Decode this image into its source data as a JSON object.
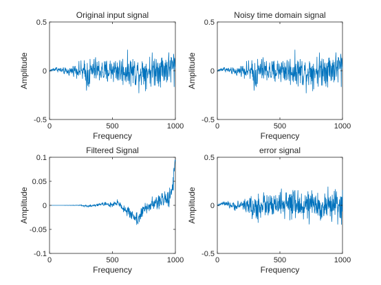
{
  "chart_data": [
    {
      "type": "line",
      "title": "Original input signal",
      "xlabel": "Frequency",
      "ylabel": "Amplitude",
      "xlim": [
        0,
        1000
      ],
      "ylim": [
        -0.5,
        0.5
      ],
      "x_ticks": [
        "0",
        "500",
        "1000"
      ],
      "y_ticks": [
        "0.5",
        "0",
        "-0.5"
      ],
      "color": "#0072BD",
      "grid": false,
      "signal_x": [
        0,
        50,
        100,
        150,
        200,
        250,
        300,
        350,
        400,
        450,
        500,
        550,
        600,
        650,
        700,
        750,
        800,
        850,
        900,
        950,
        1000
      ],
      "signal_envelope": [
        0.02,
        0.04,
        0.05,
        0.07,
        0.09,
        0.15,
        0.28,
        0.22,
        0.2,
        0.22,
        0.22,
        0.24,
        0.25,
        0.24,
        0.27,
        0.26,
        0.27,
        0.28,
        0.28,
        0.28,
        0.35
      ],
      "signal_offset": [
        0.0,
        0.02,
        0.0,
        -0.01,
        0.01,
        0.0,
        -0.05,
        0.01,
        0.0,
        -0.02,
        0.02,
        0.0,
        0.0,
        0.0,
        -0.02,
        0.0,
        0.0,
        0.02,
        0.02,
        0.03,
        0.04
      ]
    },
    {
      "type": "line",
      "title": "Noisy time domain signal",
      "xlabel": "Frequency",
      "ylabel": "Amplitude",
      "xlim": [
        0,
        1000
      ],
      "ylim": [
        -0.5,
        0.5
      ],
      "x_ticks": [
        "0",
        "500",
        "1000"
      ],
      "y_ticks": [
        "0.5",
        "0",
        "-0.5"
      ],
      "color": "#0072BD",
      "grid": false,
      "signal_x": [
        0,
        50,
        100,
        150,
        200,
        250,
        300,
        350,
        400,
        450,
        500,
        550,
        600,
        650,
        700,
        750,
        800,
        850,
        900,
        950,
        1000
      ],
      "signal_envelope": [
        0.02,
        0.04,
        0.05,
        0.07,
        0.09,
        0.15,
        0.28,
        0.22,
        0.2,
        0.22,
        0.22,
        0.24,
        0.25,
        0.24,
        0.27,
        0.26,
        0.27,
        0.28,
        0.28,
        0.28,
        0.35
      ],
      "signal_offset": [
        0.0,
        0.02,
        0.0,
        -0.01,
        0.01,
        0.0,
        -0.05,
        0.01,
        0.0,
        -0.02,
        0.02,
        0.0,
        0.0,
        0.0,
        -0.02,
        0.0,
        0.0,
        0.02,
        0.02,
        0.03,
        0.04
      ]
    },
    {
      "type": "line",
      "title": "Filtered Signal",
      "xlabel": "Frequency",
      "ylabel": "Amplitude",
      "xlim": [
        0,
        1000
      ],
      "ylim": [
        -0.1,
        0.1
      ],
      "x_ticks": [
        "0",
        "500",
        "1000"
      ],
      "y_ticks": [
        "0.1",
        "0.05",
        "0",
        "-0.05",
        "-0.1"
      ],
      "color": "#0072BD",
      "grid": false,
      "signal_x": [
        0,
        50,
        100,
        150,
        200,
        250,
        300,
        350,
        400,
        450,
        500,
        550,
        600,
        650,
        700,
        750,
        800,
        850,
        900,
        950,
        980,
        1000
      ],
      "signal_envelope": [
        0.0,
        0.0,
        0.0,
        0.0005,
        0.001,
        0.002,
        0.003,
        0.004,
        0.006,
        0.008,
        0.01,
        0.013,
        0.016,
        0.02,
        0.025,
        0.022,
        0.02,
        0.025,
        0.03,
        0.035,
        0.03,
        0.02
      ],
      "signal_offset": [
        0.0,
        0.0,
        0.0,
        0.0,
        0.0,
        0.0,
        -0.002,
        0.0,
        0.002,
        0.003,
        0.0,
        0.005,
        -0.01,
        -0.018,
        -0.03,
        -0.01,
        0.0,
        0.005,
        0.01,
        0.018,
        0.04,
        0.1
      ]
    },
    {
      "type": "line",
      "title": "error signal",
      "xlabel": "Frequency",
      "ylabel": "Amplitude",
      "xlim": [
        0,
        1000
      ],
      "ylim": [
        -0.5,
        0.5
      ],
      "x_ticks": [
        "0",
        "500",
        "1000"
      ],
      "y_ticks": [
        "0.5",
        "0",
        "-0.5"
      ],
      "color": "#0072BD",
      "grid": false,
      "signal_x": [
        0,
        50,
        100,
        150,
        200,
        250,
        300,
        350,
        400,
        450,
        500,
        550,
        600,
        650,
        700,
        750,
        800,
        850,
        900,
        950,
        1000
      ],
      "signal_envelope": [
        0.02,
        0.04,
        0.05,
        0.07,
        0.09,
        0.15,
        0.28,
        0.22,
        0.2,
        0.22,
        0.22,
        0.24,
        0.25,
        0.24,
        0.25,
        0.24,
        0.25,
        0.26,
        0.25,
        0.25,
        0.28
      ],
      "signal_offset": [
        0.0,
        0.02,
        0.0,
        -0.01,
        0.01,
        0.0,
        -0.05,
        0.01,
        0.0,
        -0.02,
        0.02,
        0.0,
        0.0,
        0.0,
        0.0,
        0.0,
        -0.02,
        0.0,
        0.0,
        0.0,
        0.0
      ]
    }
  ]
}
